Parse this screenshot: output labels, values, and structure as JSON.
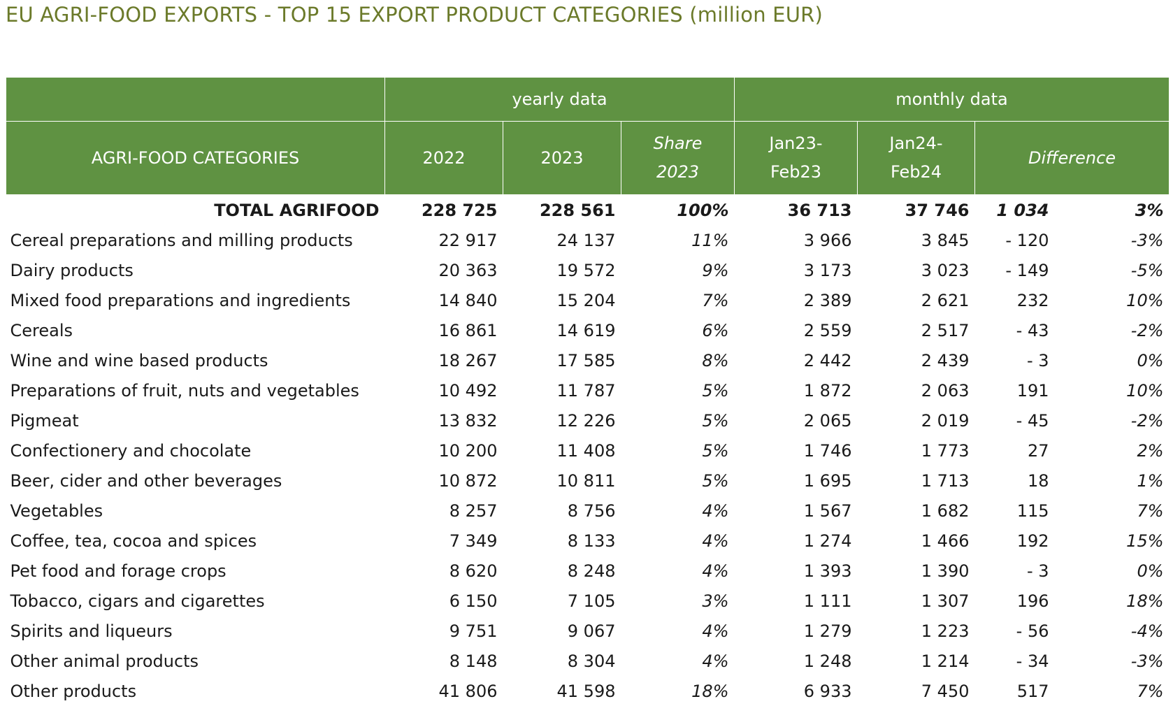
{
  "title": "EU AGRI-FOOD EXPORTS - TOP 15 EXPORT PRODUCT CATEGORIES (million EUR)",
  "header": {
    "groups": {
      "yearly": "yearly data",
      "monthly": "monthly data"
    },
    "columns": {
      "category": "AGRI-FOOD CATEGORIES",
      "y2022": "2022",
      "y2023": "2023",
      "share_l1": "Share",
      "share_l2": "2023",
      "jan23_l1": "Jan23-",
      "jan23_l2": "Feb23",
      "jan24_l1": "Jan24-",
      "jan24_l2": "Feb24",
      "difference": "Difference"
    }
  },
  "total": {
    "category": "TOTAL AGRIFOOD",
    "y2022": "228 725",
    "y2023": "228 561",
    "share": "100%",
    "m2023": "36 713",
    "m2024": "37 746",
    "diff": "1 034",
    "diff_pct": "3%"
  },
  "rows": [
    {
      "category": "Cereal preparations and milling products",
      "y2022": "22 917",
      "y2023": "24 137",
      "share": "11%",
      "m2023": "3 966",
      "m2024": "3 845",
      "diff": "-  120",
      "diff_pct": "-3%"
    },
    {
      "category": "Dairy products",
      "y2022": "20 363",
      "y2023": "19 572",
      "share": "9%",
      "m2023": "3 173",
      "m2024": "3 023",
      "diff": "-  149",
      "diff_pct": "-5%"
    },
    {
      "category": "Mixed food preparations and ingredients",
      "y2022": "14 840",
      "y2023": "15 204",
      "share": "7%",
      "m2023": "2 389",
      "m2024": "2 621",
      "diff": "232",
      "diff_pct": "10%"
    },
    {
      "category": "Cereals",
      "y2022": "16 861",
      "y2023": "14 619",
      "share": "6%",
      "m2023": "2 559",
      "m2024": "2 517",
      "diff": "-  43",
      "diff_pct": "-2%"
    },
    {
      "category": "Wine and wine based products",
      "y2022": "18 267",
      "y2023": "17 585",
      "share": "8%",
      "m2023": "2 442",
      "m2024": "2 439",
      "diff": "-  3",
      "diff_pct": "0%"
    },
    {
      "category": "Preparations of fruit, nuts and vegetables",
      "y2022": "10 492",
      "y2023": "11 787",
      "share": "5%",
      "m2023": "1 872",
      "m2024": "2 063",
      "diff": "191",
      "diff_pct": "10%"
    },
    {
      "category": "Pigmeat",
      "y2022": "13 832",
      "y2023": "12 226",
      "share": "5%",
      "m2023": "2 065",
      "m2024": "2 019",
      "diff": "-  45",
      "diff_pct": "-2%"
    },
    {
      "category": "Confectionery and chocolate",
      "y2022": "10 200",
      "y2023": "11 408",
      "share": "5%",
      "m2023": "1 746",
      "m2024": "1 773",
      "diff": "27",
      "diff_pct": "2%"
    },
    {
      "category": "Beer, cider and other beverages",
      "y2022": "10 872",
      "y2023": "10 811",
      "share": "5%",
      "m2023": "1 695",
      "m2024": "1 713",
      "diff": "18",
      "diff_pct": "1%"
    },
    {
      "category": "Vegetables",
      "y2022": "8 257",
      "y2023": "8 756",
      "share": "4%",
      "m2023": "1 567",
      "m2024": "1 682",
      "diff": "115",
      "diff_pct": "7%"
    },
    {
      "category": "Coffee, tea, cocoa and spices",
      "y2022": "7 349",
      "y2023": "8 133",
      "share": "4%",
      "m2023": "1 274",
      "m2024": "1 466",
      "diff": "192",
      "diff_pct": "15%"
    },
    {
      "category": "Pet food and forage crops",
      "y2022": "8 620",
      "y2023": "8 248",
      "share": "4%",
      "m2023": "1 393",
      "m2024": "1 390",
      "diff": "-  3",
      "diff_pct": "0%"
    },
    {
      "category": "Tobacco, cigars and cigarettes",
      "y2022": "6 150",
      "y2023": "7 105",
      "share": "3%",
      "m2023": "1 111",
      "m2024": "1 307",
      "diff": "196",
      "diff_pct": "18%"
    },
    {
      "category": "Spirits and liqueurs",
      "y2022": "9 751",
      "y2023": "9 067",
      "share": "4%",
      "m2023": "1 279",
      "m2024": "1 223",
      "diff": "-  56",
      "diff_pct": "-4%"
    },
    {
      "category": "Other animal products",
      "y2022": "8 148",
      "y2023": "8 304",
      "share": "4%",
      "m2023": "1 248",
      "m2024": "1 214",
      "diff": "-  34",
      "diff_pct": "-3%"
    },
    {
      "category": "Other products",
      "y2022": "41 806",
      "y2023": "41 598",
      "share": "18%",
      "m2023": "6 933",
      "m2024": "7 450",
      "diff": "517",
      "diff_pct": "7%"
    }
  ],
  "colors": {
    "header_bg": "#5f9242",
    "title": "#6b7a2a",
    "header_text": "#ffffff"
  }
}
